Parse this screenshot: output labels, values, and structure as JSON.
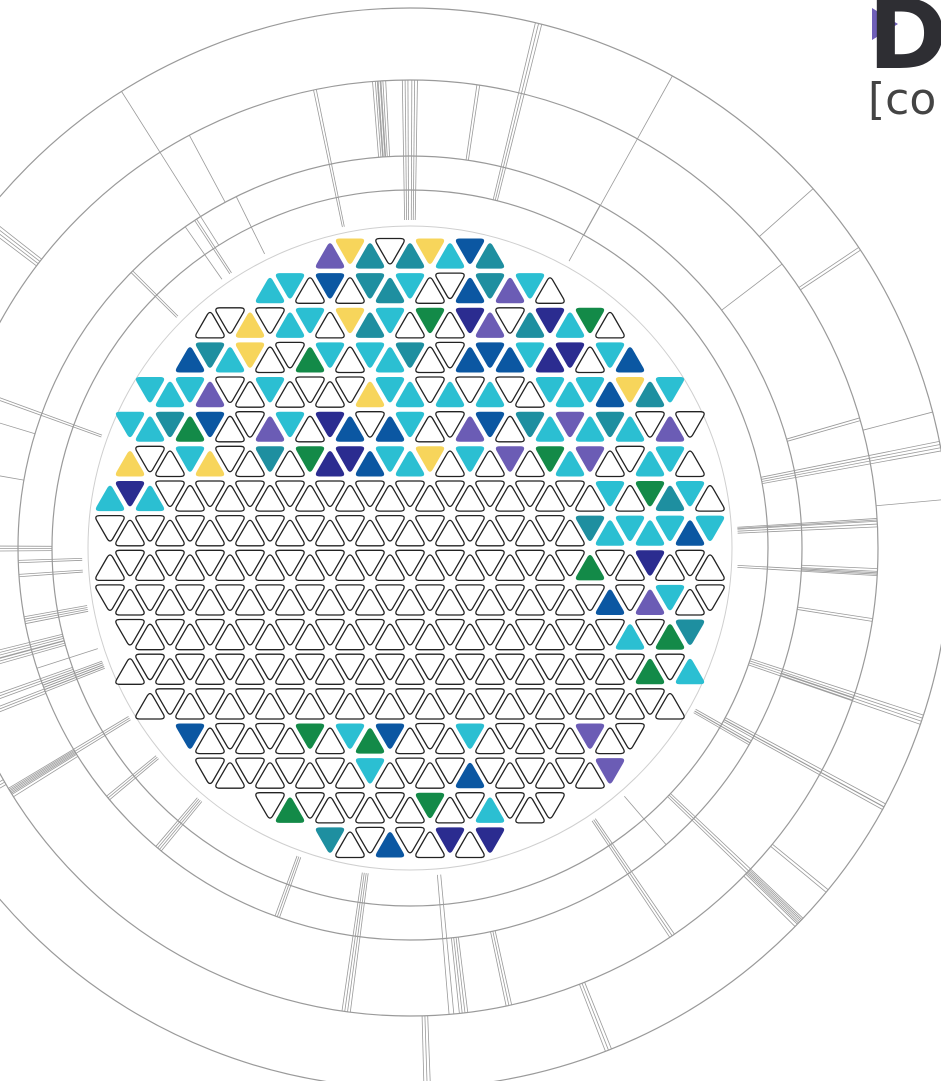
{
  "logo": {
    "big_letter": "D",
    "bracket_text": "[co",
    "colors": {
      "letter": "#2e2e33",
      "play": "#6f5fb8",
      "bracket": "#444444"
    }
  },
  "palette": {
    "cyan": "#2bbfd2",
    "teal": "#1e8fa0",
    "blue": "#0b57a2",
    "navy": "#2b2c90",
    "purple": "#6b5cb5",
    "green": "#138a48",
    "yellow": "#f7d55b",
    "outline": "#222222",
    "rings": "#9a9a9a"
  }
}
